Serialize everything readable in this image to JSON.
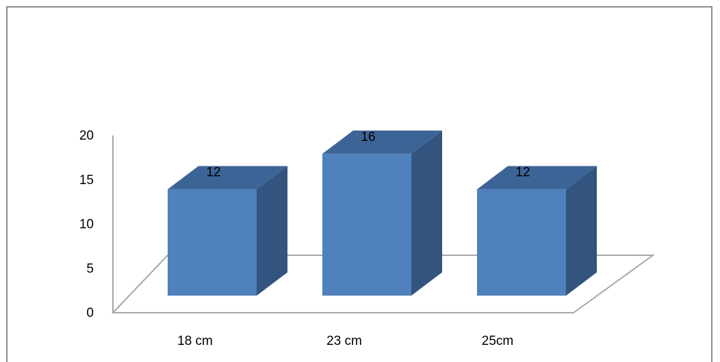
{
  "chart_data": {
    "type": "bar",
    "style": "3d-column",
    "categories": [
      "18 cm",
      "23 cm",
      "25cm"
    ],
    "values": [
      12,
      16,
      12
    ],
    "data_labels": [
      "12",
      "16",
      "12"
    ],
    "ylim": [
      0,
      20
    ],
    "yticks": [
      "0",
      "5",
      "10",
      "15",
      "20"
    ],
    "grid": false,
    "legend": "none",
    "colors": {
      "front": "#4f81bd",
      "top": "#3d6496",
      "side": "#32547e",
      "axis": "#a6a6a6"
    }
  }
}
